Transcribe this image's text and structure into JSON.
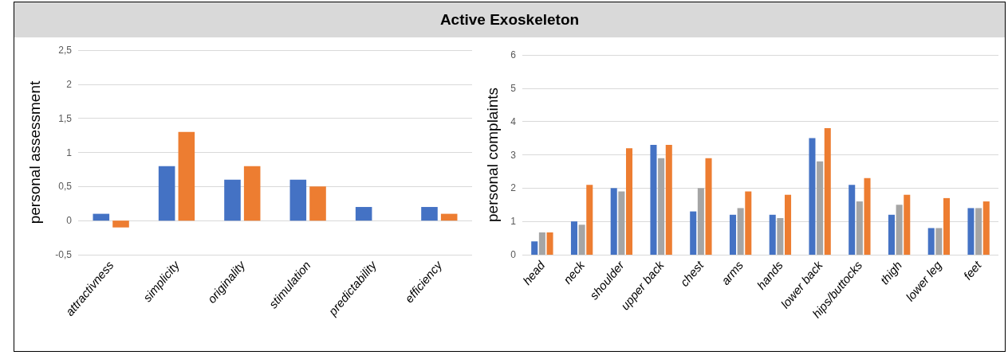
{
  "chart_data": [
    {
      "type": "bar",
      "title": "Active Exoskeleton",
      "ylabel": "personal assessment",
      "categories": [
        "attractivness",
        "simplicity",
        "originality",
        "stimulation",
        "predictability",
        "efficiency"
      ],
      "series": [
        {
          "color": "#4472c4",
          "values": [
            0.1,
            0.8,
            0.6,
            0.6,
            0.2,
            0.2
          ]
        },
        {
          "color": "#ed7d31",
          "values": [
            -0.1,
            1.3,
            0.8,
            0.5,
            0,
            0.1
          ]
        }
      ],
      "ylim": [
        -0.5,
        2.5
      ],
      "yticks": [
        {
          "value": -0.5,
          "label": "-0,5"
        },
        0,
        {
          "value": 0.5,
          "label": "0,5"
        },
        1,
        {
          "value": 1.5,
          "label": "1,5"
        },
        2,
        {
          "value": 2.5,
          "label": "2,5"
        }
      ],
      "grid": "y"
    },
    {
      "type": "bar",
      "ylabel": "personal complaints",
      "categories": [
        "head",
        "neck",
        "shoulder",
        "upper back",
        "chest",
        "arms",
        "hands",
        "lower back",
        "hips/buttocks",
        "thigh",
        "lower leg",
        "feet"
      ],
      "series": [
        {
          "color": "#4472c4",
          "values": [
            0.4,
            1.0,
            2.0,
            3.3,
            1.3,
            1.2,
            1.2,
            3.5,
            2.1,
            1.2,
            0.8,
            1.4
          ]
        },
        {
          "color": "#a5a5a5",
          "values": [
            0.67,
            0.9,
            1.9,
            2.9,
            2.0,
            1.4,
            1.1,
            2.8,
            1.6,
            1.5,
            0.8,
            1.4
          ]
        },
        {
          "color": "#ed7d31",
          "values": [
            0.67,
            2.1,
            3.2,
            3.3,
            2.9,
            1.9,
            1.8,
            3.8,
            2.3,
            1.8,
            1.7,
            1.6
          ]
        }
      ],
      "ylim": [
        0,
        6
      ],
      "yticks": [
        0,
        1,
        2,
        3,
        4,
        5,
        6
      ],
      "grid": "y"
    }
  ]
}
